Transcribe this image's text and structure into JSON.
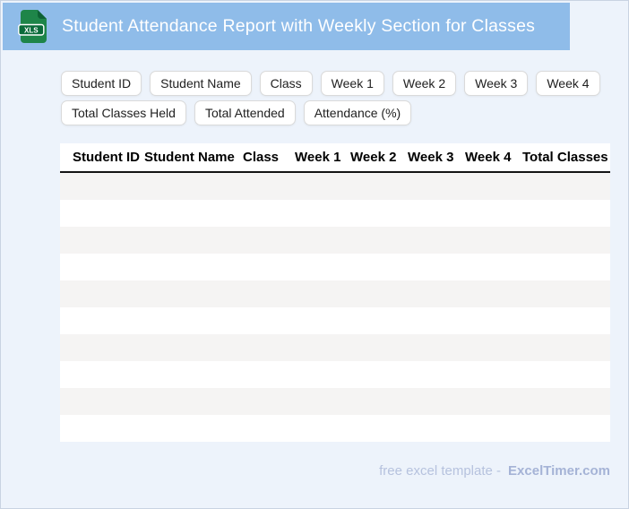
{
  "window": {
    "background": "#edf3fb",
    "border_color": "#c9d3e2"
  },
  "header": {
    "title": "Student Attendance Report with Weekly Section for Classes",
    "background": "#8fbce9",
    "icon": {
      "name": "xls-file-icon",
      "label": "XLS",
      "body_color": "#1e8549",
      "fold_color": "#0d6234",
      "band_color": "#0b6b3a"
    }
  },
  "chips": {
    "row1": [
      "Student ID",
      "Student Name",
      "Class",
      "Week 1",
      "Week 2",
      "Week 3",
      "Week 4"
    ],
    "row2": [
      "Total Classes Held",
      "Total Attended",
      "Attendance (%)"
    ]
  },
  "table": {
    "columns": [
      "Student ID",
      "Student Name",
      "Class",
      "Week 1",
      "Week 2",
      "Week 3",
      "Week 4",
      "Total Classes Held"
    ],
    "empty_row_count": 10,
    "stripe_color": "#f5f4f3"
  },
  "footer": {
    "text": "free excel template -",
    "brand": "ExcelTimer.com"
  }
}
